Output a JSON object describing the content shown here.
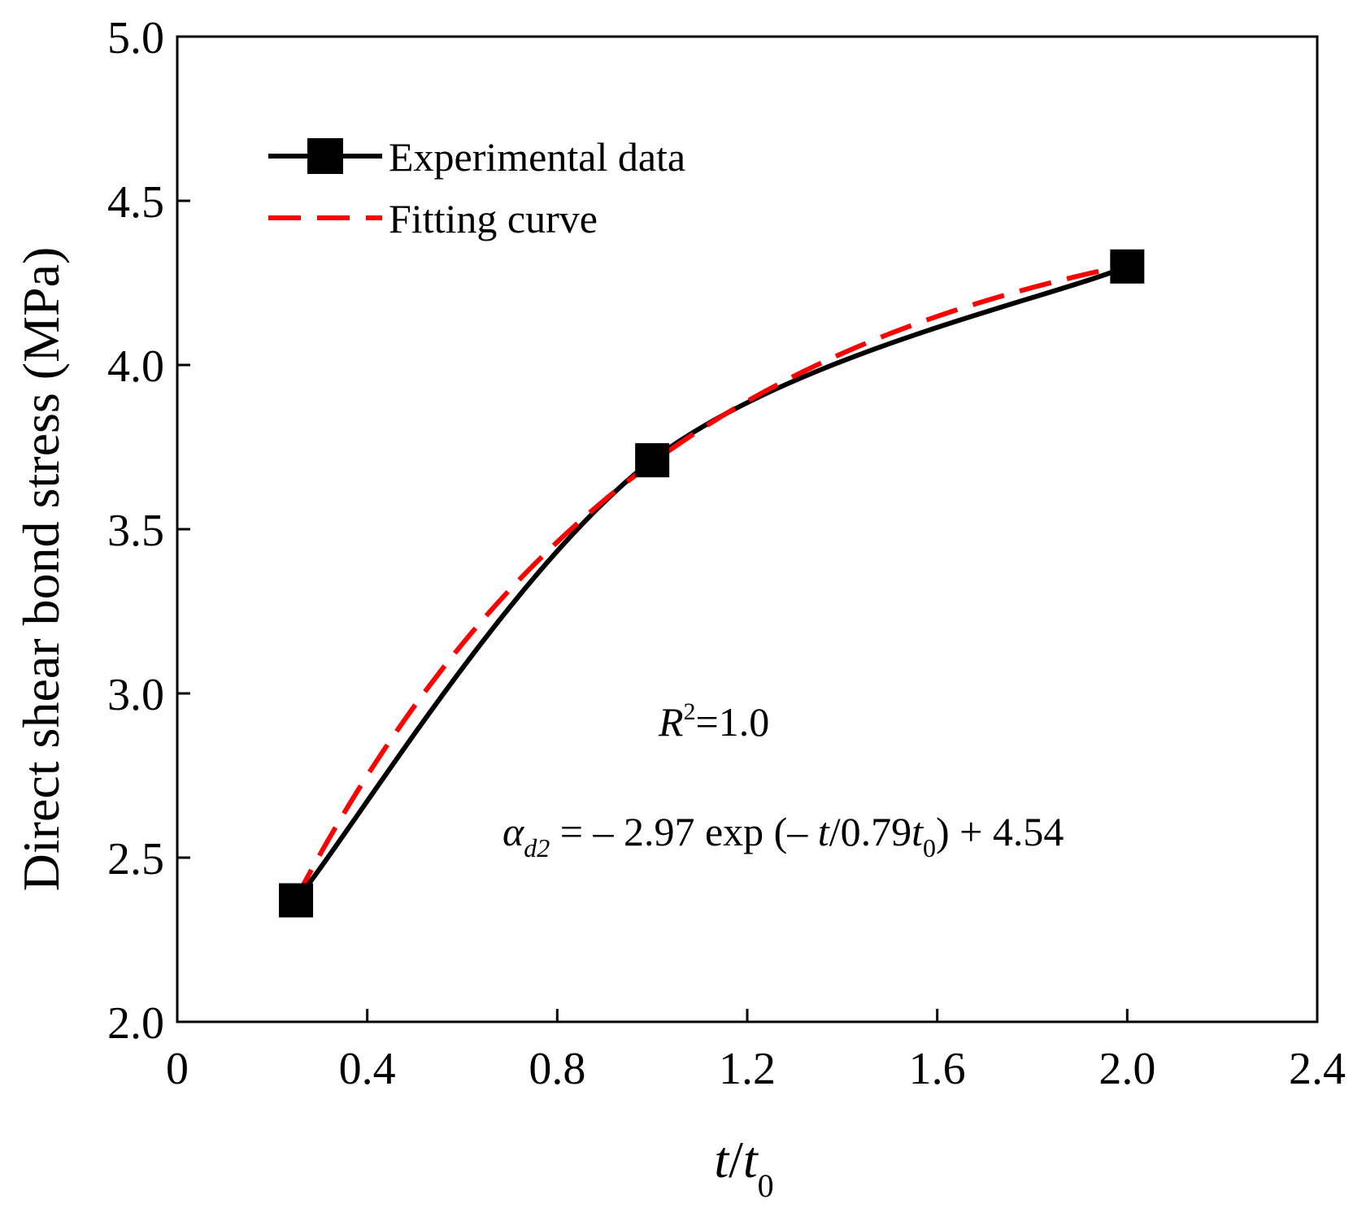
{
  "chart_data": {
    "type": "line",
    "xlabel": {
      "italic_main": "t",
      "slash": "/",
      "italic_base": "t",
      "subscript": "0"
    },
    "ylabel": "Direct shear bond stress (MPa)",
    "xlim": [
      0,
      2.4
    ],
    "ylim": [
      2.0,
      5.0
    ],
    "x_ticks": [
      0,
      0.4,
      0.8,
      1.2,
      1.6,
      2.0,
      2.4
    ],
    "x_tick_labels": [
      "0",
      "0.4",
      "0.8",
      "1.2",
      "1.6",
      "2.0",
      "2.4"
    ],
    "y_ticks": [
      2.0,
      2.5,
      3.0,
      3.5,
      4.0,
      4.5,
      5.0
    ],
    "y_tick_labels": [
      "2.0",
      "2.5",
      "3.0",
      "3.5",
      "4.0",
      "4.5",
      "5.0"
    ],
    "grid": false,
    "legend_position": "top-left",
    "series": [
      {
        "name": "Experimental data",
        "style": "solid-line-square-markers",
        "color": "#000000",
        "x": [
          0.25,
          1.0,
          2.0
        ],
        "y": [
          2.37,
          3.71,
          4.3
        ]
      },
      {
        "name": "Fitting curve",
        "style": "dashed",
        "color": "#ff0000",
        "formula": {
          "a": -2.97,
          "tau": 0.79,
          "c": 4.54
        },
        "x_range": [
          0.25,
          2.0
        ]
      }
    ],
    "annotations": {
      "r2": {
        "symbol": "R",
        "superscript": "2",
        "text": "=1.0"
      },
      "equation": {
        "lhs_symbol": "α",
        "lhs_subscript": "d2",
        "part1": " = – 2.97 exp (– ",
        "t1": "t",
        "part2": "/0.79",
        "t2": "t",
        "t2_subscript": "0",
        "part3": ") + 4.54"
      }
    }
  }
}
